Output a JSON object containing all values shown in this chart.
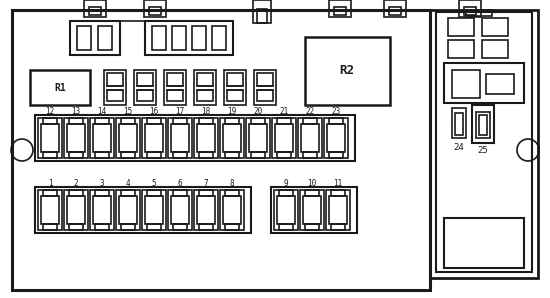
{
  "bg_color": "#ffffff",
  "line_color": "#1a1a1a",
  "lw": 1.2,
  "fig_w": 5.5,
  "fig_h": 2.98,
  "dpi": 100,
  "fuse_row1_labels": [
    "12",
    "13",
    "14",
    "15",
    "16",
    "17",
    "18",
    "19",
    "20",
    "21",
    "22",
    "23"
  ],
  "fuse_row2_labels_a": [
    "1",
    "2",
    "3",
    "4",
    "5",
    "6",
    "7",
    "8"
  ],
  "fuse_row2_labels_b": [
    "9",
    "10",
    "11"
  ],
  "relay_labels": [
    "R1",
    "R2"
  ],
  "fuse24_label": "24",
  "fuse25_label": "25"
}
